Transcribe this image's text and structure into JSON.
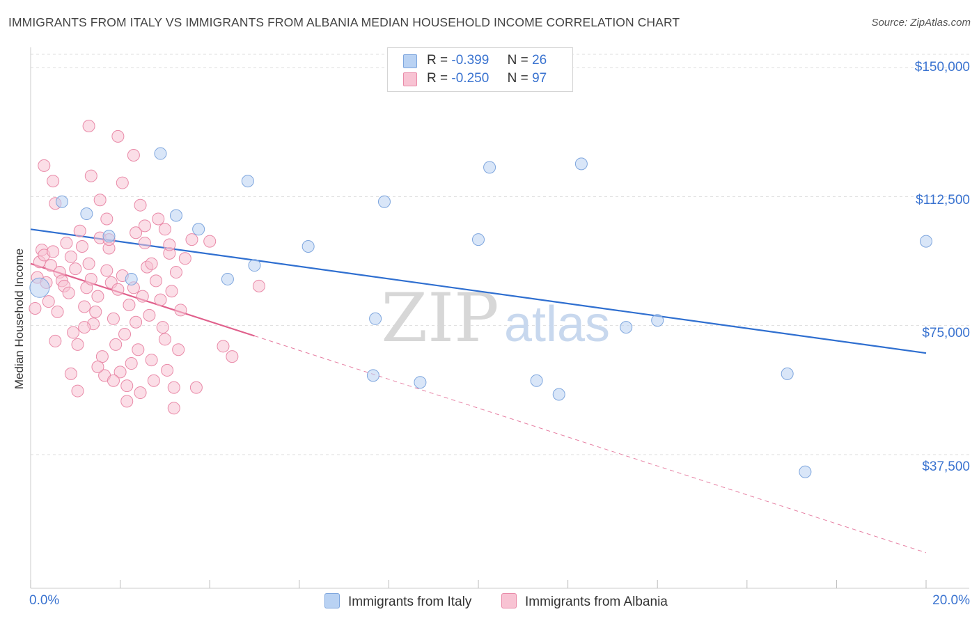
{
  "title": "IMMIGRANTS FROM ITALY VS IMMIGRANTS FROM ALBANIA MEDIAN HOUSEHOLD INCOME CORRELATION CHART",
  "source": "Source: ZipAtlas.com",
  "watermark": {
    "zip": "ZIP",
    "atlas": "atlas"
  },
  "legend": {
    "italy": {
      "r_label": "R =",
      "r_value": "-0.399",
      "n_label": "N =",
      "n_value": "26"
    },
    "albania": {
      "r_label": "R =",
      "r_value": "-0.250",
      "n_label": "N =",
      "n_value": "97"
    }
  },
  "colors": {
    "italy_fill": "#b9d2f3",
    "italy_stroke": "#7ea6de",
    "italy_line": "#2f6fd0",
    "albania_fill": "#f8c3d3",
    "albania_stroke": "#e98aa8",
    "albania_line": "#e0608c",
    "axis_text": "#3a73d0",
    "grid": "#dddddd"
  },
  "chart_data": {
    "type": "scatter",
    "title": "IMMIGRANTS FROM ITALY VS IMMIGRANTS FROM ALBANIA MEDIAN HOUSEHOLD INCOME CORRELATION CHART",
    "xlabel": "",
    "ylabel": "Median Household Income",
    "xlim": [
      0,
      20
    ],
    "ylim": [
      0,
      155000
    ],
    "x_tick_labels": [
      "0.0%",
      "20.0%"
    ],
    "y_ticks": [
      37500,
      75000,
      112500,
      150000
    ],
    "y_tick_labels": [
      "$37,500",
      "$75,000",
      "$112,500",
      "$150,000"
    ],
    "grid": "horizontal dashed",
    "legend_position": "top-center",
    "series": [
      {
        "name": "Immigrants from Italy",
        "trend": {
          "x0": 0.0,
          "y0": 103000,
          "x1": 20.0,
          "y1": 67000
        },
        "points": [
          [
            0.2,
            86000
          ],
          [
            0.7,
            111000
          ],
          [
            1.25,
            107500
          ],
          [
            1.75,
            101000
          ],
          [
            2.25,
            88500
          ],
          [
            2.9,
            125000
          ],
          [
            3.25,
            107000
          ],
          [
            3.75,
            103000
          ],
          [
            4.4,
            88500
          ],
          [
            4.85,
            117000
          ],
          [
            5.0,
            92500
          ],
          [
            6.2,
            98000
          ],
          [
            7.65,
            60500
          ],
          [
            7.7,
            77000
          ],
          [
            7.9,
            111000
          ],
          [
            8.7,
            58500
          ],
          [
            10.0,
            100000
          ],
          [
            10.25,
            121000
          ],
          [
            11.3,
            59000
          ],
          [
            11.8,
            55000
          ],
          [
            12.3,
            122000
          ],
          [
            13.3,
            74500
          ],
          [
            14.0,
            76500
          ],
          [
            16.9,
            61000
          ],
          [
            17.3,
            32500
          ],
          [
            20.0,
            99500
          ]
        ]
      },
      {
        "name": "Immigrants from Albania",
        "trend": {
          "x0": 0.0,
          "y0": 93000,
          "x1": 5.0,
          "y1": 72000
        },
        "trend_dashed": {
          "x0": 5.0,
          "y0": 72000,
          "x1": 20.0,
          "y1": 9000
        },
        "points": [
          [
            0.1,
            80000
          ],
          [
            0.15,
            89000
          ],
          [
            0.2,
            93500
          ],
          [
            0.25,
            97000
          ],
          [
            0.3,
            95500
          ],
          [
            0.35,
            87500
          ],
          [
            0.4,
            82000
          ],
          [
            0.45,
            92500
          ],
          [
            0.5,
            96500
          ],
          [
            0.55,
            70500
          ],
          [
            0.6,
            79000
          ],
          [
            0.65,
            90500
          ],
          [
            0.7,
            88000
          ],
          [
            0.75,
            86500
          ],
          [
            0.8,
            99000
          ],
          [
            0.85,
            84500
          ],
          [
            0.9,
            95000
          ],
          [
            0.95,
            73000
          ],
          [
            1.0,
            91500
          ],
          [
            1.05,
            69500
          ],
          [
            1.1,
            102500
          ],
          [
            1.15,
            98000
          ],
          [
            1.2,
            80500
          ],
          [
            1.25,
            86000
          ],
          [
            1.3,
            93000
          ],
          [
            1.35,
            88500
          ],
          [
            1.4,
            75500
          ],
          [
            1.45,
            79000
          ],
          [
            1.5,
            83500
          ],
          [
            1.55,
            100500
          ],
          [
            1.6,
            66000
          ],
          [
            1.65,
            60500
          ],
          [
            1.7,
            91000
          ],
          [
            1.75,
            97500
          ],
          [
            1.8,
            87500
          ],
          [
            1.85,
            77000
          ],
          [
            1.9,
            69500
          ],
          [
            1.95,
            85500
          ],
          [
            2.0,
            61500
          ],
          [
            2.05,
            89500
          ],
          [
            2.1,
            72500
          ],
          [
            2.15,
            57500
          ],
          [
            2.2,
            81000
          ],
          [
            2.25,
            64000
          ],
          [
            2.3,
            86000
          ],
          [
            2.35,
            102000
          ],
          [
            2.4,
            68000
          ],
          [
            2.45,
            55500
          ],
          [
            2.5,
            83500
          ],
          [
            2.55,
            99000
          ],
          [
            2.6,
            92000
          ],
          [
            2.65,
            78000
          ],
          [
            2.7,
            65000
          ],
          [
            2.75,
            59000
          ],
          [
            2.8,
            88000
          ],
          [
            2.85,
            106000
          ],
          [
            2.9,
            82500
          ],
          [
            2.95,
            74500
          ],
          [
            3.0,
            71000
          ],
          [
            3.05,
            62000
          ],
          [
            3.1,
            96000
          ],
          [
            3.15,
            85000
          ],
          [
            3.2,
            57000
          ],
          [
            3.25,
            90500
          ],
          [
            3.3,
            68000
          ],
          [
            3.35,
            79500
          ],
          [
            0.3,
            121500
          ],
          [
            0.5,
            117000
          ],
          [
            0.55,
            110500
          ],
          [
            1.3,
            133000
          ],
          [
            1.35,
            118500
          ],
          [
            1.55,
            111500
          ],
          [
            1.7,
            106000
          ],
          [
            1.75,
            100000
          ],
          [
            1.95,
            130000
          ],
          [
            2.05,
            116500
          ],
          [
            2.3,
            124500
          ],
          [
            2.45,
            110000
          ],
          [
            2.55,
            104000
          ],
          [
            3.0,
            103000
          ],
          [
            3.1,
            98500
          ],
          [
            3.7,
            57000
          ],
          [
            4.0,
            99500
          ],
          [
            4.3,
            69000
          ],
          [
            4.5,
            66000
          ],
          [
            1.2,
            74500
          ],
          [
            0.9,
            61000
          ],
          [
            1.05,
            56000
          ],
          [
            2.15,
            53000
          ],
          [
            1.5,
            63000
          ],
          [
            1.85,
            59000
          ],
          [
            2.35,
            76000
          ],
          [
            3.2,
            51000
          ],
          [
            2.7,
            93000
          ],
          [
            3.6,
            100000
          ],
          [
            3.45,
            94500
          ],
          [
            5.1,
            86500
          ]
        ]
      }
    ]
  },
  "bottom_legend": {
    "italy": "Immigrants from Italy",
    "albania": "Immigrants from Albania"
  }
}
